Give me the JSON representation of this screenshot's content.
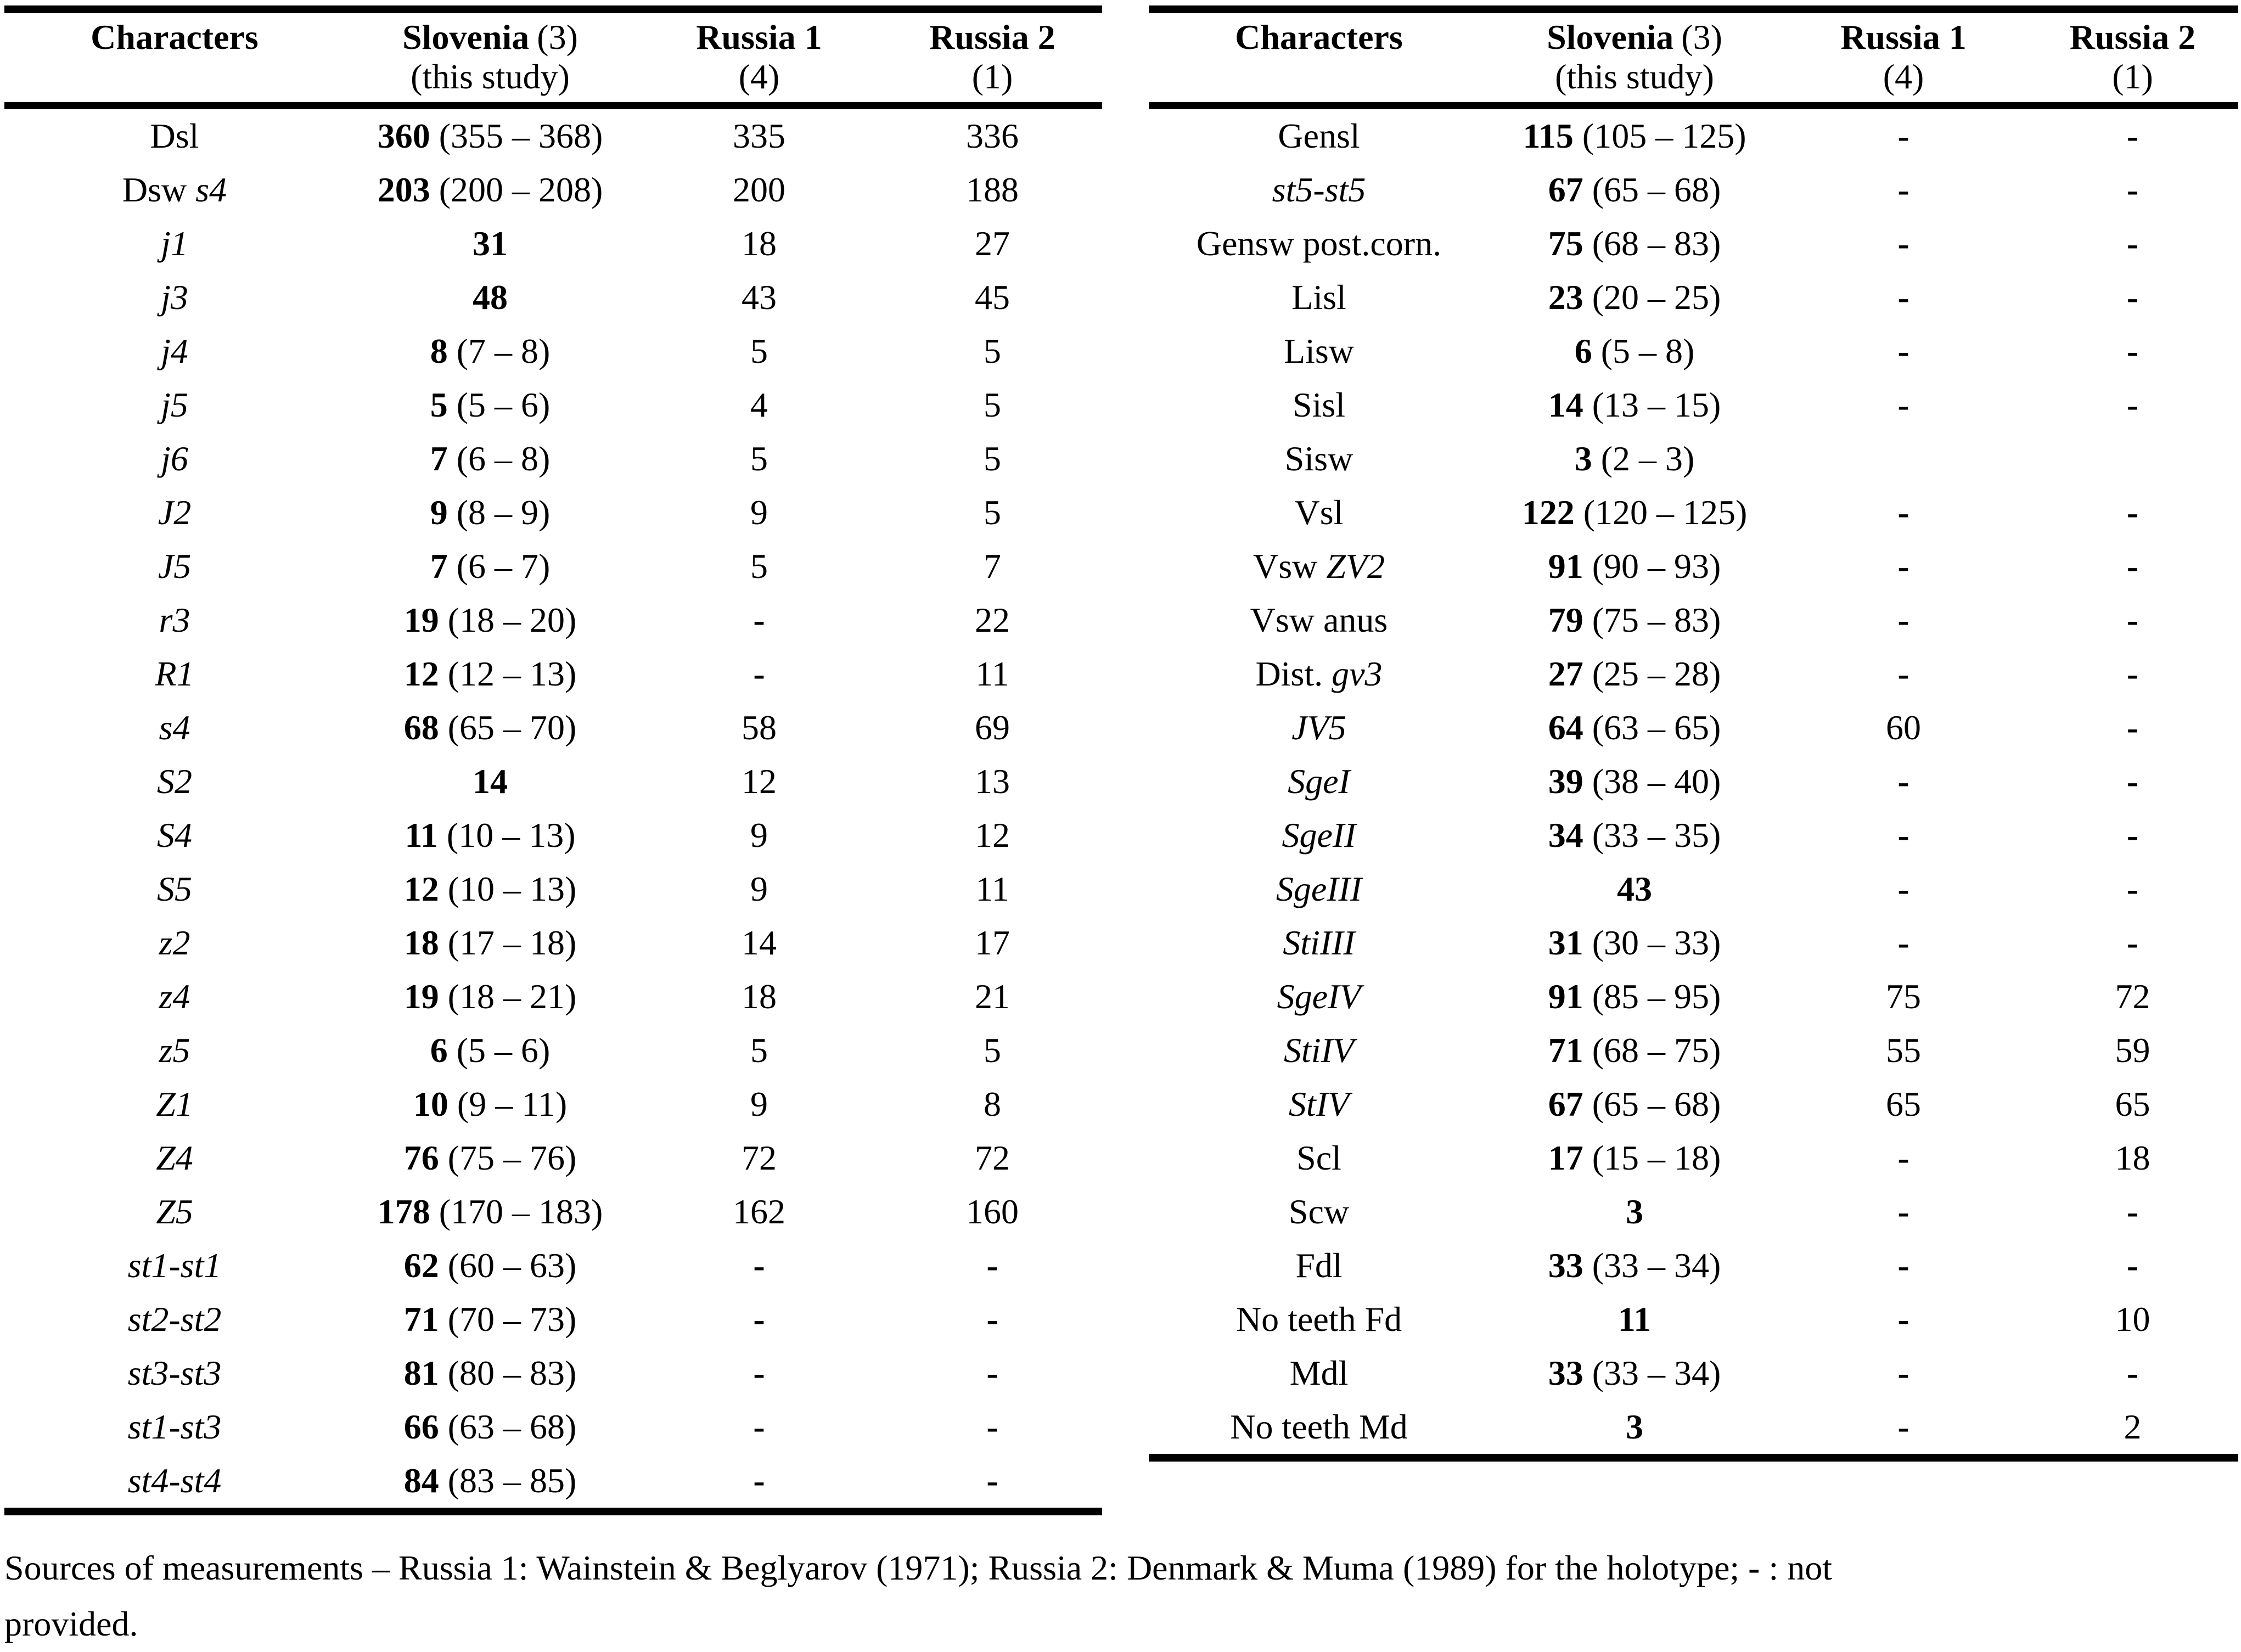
{
  "columns": {
    "characters": "Characters",
    "slovenia": "Slovenia",
    "slovenia_n": "(3)",
    "slovenia_sub": "(this study)",
    "russia1": "Russia 1",
    "russia1_n": "(4)",
    "russia2": "Russia 2",
    "russia2_n": "(1)"
  },
  "left_table": {
    "rows": [
      {
        "char": [
          [
            "Dsl",
            false
          ]
        ],
        "slo": "360",
        "range": "(355 – 368)",
        "r1": "335",
        "r2": "336"
      },
      {
        "char": [
          [
            "Dsw ",
            false
          ],
          [
            "s4",
            true
          ]
        ],
        "slo": "203",
        "range": "(200 – 208)",
        "r1": "200",
        "r2": "188"
      },
      {
        "char": [
          [
            "j1",
            true
          ]
        ],
        "slo": "31",
        "range": "",
        "r1": "18",
        "r2": "27"
      },
      {
        "char": [
          [
            "j3",
            true
          ]
        ],
        "slo": "48",
        "range": "",
        "r1": "43",
        "r2": "45"
      },
      {
        "char": [
          [
            "j4",
            true
          ]
        ],
        "slo": "8",
        "range": "(7 – 8)",
        "r1": "5",
        "r2": "5"
      },
      {
        "char": [
          [
            "j5",
            true
          ]
        ],
        "slo": "5",
        "range": "(5 – 6)",
        "r1": "4",
        "r2": "5"
      },
      {
        "char": [
          [
            "j6",
            true
          ]
        ],
        "slo": "7",
        "range": "(6 – 8)",
        "r1": "5",
        "r2": "5"
      },
      {
        "char": [
          [
            "J2",
            true
          ]
        ],
        "slo": "9",
        "range": "(8 – 9)",
        "r1": "9",
        "r2": "5"
      },
      {
        "char": [
          [
            "J5",
            true
          ]
        ],
        "slo": "7",
        "range": "(6 – 7)",
        "r1": "5",
        "r2": "7"
      },
      {
        "char": [
          [
            "r3",
            true
          ]
        ],
        "slo": "19",
        "range": "(18 – 20)",
        "r1": "-",
        "r2": "22"
      },
      {
        "char": [
          [
            "R1",
            true
          ]
        ],
        "slo": "12",
        "range": "(12 – 13)",
        "r1": "-",
        "r2": "11"
      },
      {
        "char": [
          [
            "s4",
            true
          ]
        ],
        "slo": "68",
        "range": "(65 – 70)",
        "r1": "58",
        "r2": "69"
      },
      {
        "char": [
          [
            "S2",
            true
          ]
        ],
        "slo": "14",
        "range": "",
        "r1": "12",
        "r2": "13"
      },
      {
        "char": [
          [
            "S4",
            true
          ]
        ],
        "slo": "11",
        "range": "(10 – 13)",
        "r1": "9",
        "r2": "12"
      },
      {
        "char": [
          [
            "S5",
            true
          ]
        ],
        "slo": "12",
        "range": "(10 – 13)",
        "r1": "9",
        "r2": "11"
      },
      {
        "char": [
          [
            "z2",
            true
          ]
        ],
        "slo": "18",
        "range": "(17 – 18)",
        "r1": "14",
        "r2": "17"
      },
      {
        "char": [
          [
            "z4",
            true
          ]
        ],
        "slo": "19",
        "range": "(18 – 21)",
        "r1": "18",
        "r2": "21"
      },
      {
        "char": [
          [
            "z5",
            true
          ]
        ],
        "slo": "6",
        "range": "(5 – 6)",
        "r1": "5",
        "r2": "5"
      },
      {
        "char": [
          [
            "Z1",
            true
          ]
        ],
        "slo": "10",
        "range": "(9 – 11)",
        "r1": "9",
        "r2": "8"
      },
      {
        "char": [
          [
            "Z4",
            true
          ]
        ],
        "slo": "76",
        "range": "(75 – 76)",
        "r1": "72",
        "r2": "72"
      },
      {
        "char": [
          [
            "Z5",
            true
          ]
        ],
        "slo": "178",
        "range": "(170 – 183)",
        "r1": "162",
        "r2": "160"
      },
      {
        "char": [
          [
            "st1-st1",
            true
          ]
        ],
        "slo": "62",
        "range": "(60 – 63)",
        "r1": "-",
        "r2": "-"
      },
      {
        "char": [
          [
            "st2-st2",
            true
          ]
        ],
        "slo": "71",
        "range": "(70 – 73)",
        "r1": "-",
        "r2": "-"
      },
      {
        "char": [
          [
            "st3-st3",
            true
          ]
        ],
        "slo": "81",
        "range": "(80 – 83)",
        "r1": "-",
        "r2": "-"
      },
      {
        "char": [
          [
            "st1-st3",
            true
          ]
        ],
        "slo": "66",
        "range": "(63 – 68)",
        "r1": "-",
        "r2": "-"
      },
      {
        "char": [
          [
            "st4-st4",
            true
          ]
        ],
        "slo": "84",
        "range": "(83 – 85)",
        "r1": "-",
        "r2": "-"
      }
    ]
  },
  "right_table": {
    "rows": [
      {
        "char": [
          [
            "Gensl",
            false
          ]
        ],
        "slo": "115",
        "range": "(105 – 125)",
        "r1": "-",
        "r2": "-"
      },
      {
        "char": [
          [
            "st5-st5",
            true
          ]
        ],
        "slo": "67",
        "range": "(65 – 68)",
        "r1": "-",
        "r2": "-"
      },
      {
        "char": [
          [
            "Gensw post.corn.",
            false
          ]
        ],
        "slo": "75",
        "range": "(68 – 83)",
        "r1": "-",
        "r2": "-"
      },
      {
        "char": [
          [
            "Lisl",
            false
          ]
        ],
        "slo": "23",
        "range": "(20 – 25)",
        "r1": "-",
        "r2": "-"
      },
      {
        "char": [
          [
            "Lisw",
            false
          ]
        ],
        "slo": "6",
        "range": "(5 – 8)",
        "r1": "-",
        "r2": "-"
      },
      {
        "char": [
          [
            "Sisl",
            false
          ]
        ],
        "slo": "14",
        "range": "(13 – 15)",
        "r1": "-",
        "r2": "-"
      },
      {
        "char": [
          [
            "Sisw",
            false
          ]
        ],
        "slo": "3",
        "range": "(2 – 3)",
        "r1": "",
        "r2": ""
      },
      {
        "char": [
          [
            "Vsl",
            false
          ]
        ],
        "slo": "122",
        "range": "(120 – 125)",
        "r1": "-",
        "r2": "-"
      },
      {
        "char": [
          [
            "Vsw ",
            false
          ],
          [
            "ZV2",
            true
          ]
        ],
        "slo": "91",
        "range": "(90 – 93)",
        "r1": "-",
        "r2": "-"
      },
      {
        "char": [
          [
            "Vsw anus",
            false
          ]
        ],
        "slo": "79",
        "range": "(75 – 83)",
        "r1": "-",
        "r2": "-"
      },
      {
        "char": [
          [
            "Dist. ",
            false
          ],
          [
            "gv3",
            true
          ]
        ],
        "slo": "27",
        "range": "(25 – 28)",
        "r1": "-",
        "r2": "-"
      },
      {
        "char": [
          [
            "JV5",
            true
          ]
        ],
        "slo": "64",
        "range": "(63 – 65)",
        "r1": "60",
        "r2": "-"
      },
      {
        "char": [
          [
            "SgeI",
            true
          ]
        ],
        "slo": "39",
        "range": "(38 – 40)",
        "r1": "-",
        "r2": "-"
      },
      {
        "char": [
          [
            "SgeII",
            true
          ]
        ],
        "slo": "34",
        "range": "(33 – 35)",
        "r1": "-",
        "r2": "-"
      },
      {
        "char": [
          [
            "SgeIII",
            true
          ]
        ],
        "slo": "43",
        "range": "",
        "r1": "-",
        "r2": "-"
      },
      {
        "char": [
          [
            "StiIII",
            true
          ]
        ],
        "slo": "31",
        "range": "(30 – 33)",
        "r1": "-",
        "r2": "-"
      },
      {
        "char": [
          [
            "SgeIV",
            true
          ]
        ],
        "slo": "91",
        "range": "(85 – 95)",
        "r1": "75",
        "r2": "72"
      },
      {
        "char": [
          [
            "StiIV",
            true
          ]
        ],
        "slo": "71",
        "range": "(68 – 75)",
        "r1": "55",
        "r2": "59"
      },
      {
        "char": [
          [
            "StIV",
            true
          ]
        ],
        "slo": "67",
        "range": "(65 – 68)",
        "r1": "65",
        "r2": "65"
      },
      {
        "char": [
          [
            "Scl",
            false
          ]
        ],
        "slo": "17",
        "range": "(15 – 18)",
        "r1": "-",
        "r2": "18"
      },
      {
        "char": [
          [
            "Scw",
            false
          ]
        ],
        "slo": "3",
        "range": "",
        "r1": "-",
        "r2": "-"
      },
      {
        "char": [
          [
            "Fdl",
            false
          ]
        ],
        "slo": "33",
        "range": "(33 – 34)",
        "r1": "-",
        "r2": "-"
      },
      {
        "char": [
          [
            "No teeth Fd",
            false
          ]
        ],
        "slo": "11",
        "range": "",
        "r1": "-",
        "r2": "10"
      },
      {
        "char": [
          [
            "Mdl",
            false
          ]
        ],
        "slo": "33",
        "range": "(33 – 34)",
        "r1": "-",
        "r2": "-"
      },
      {
        "char": [
          [
            "No teeth Md",
            false
          ]
        ],
        "slo": "3",
        "range": "",
        "r1": "-",
        "r2": "2"
      }
    ]
  },
  "footer": {
    "line1_pre": "Sources of measurements – Russia 1: Wainstein & Beglyarov (1971); Russia 2: Denmark & Muma (1989) for the holotype; ",
    "dash": "-",
    "line1_post": " : not",
    "line2": "provided."
  }
}
